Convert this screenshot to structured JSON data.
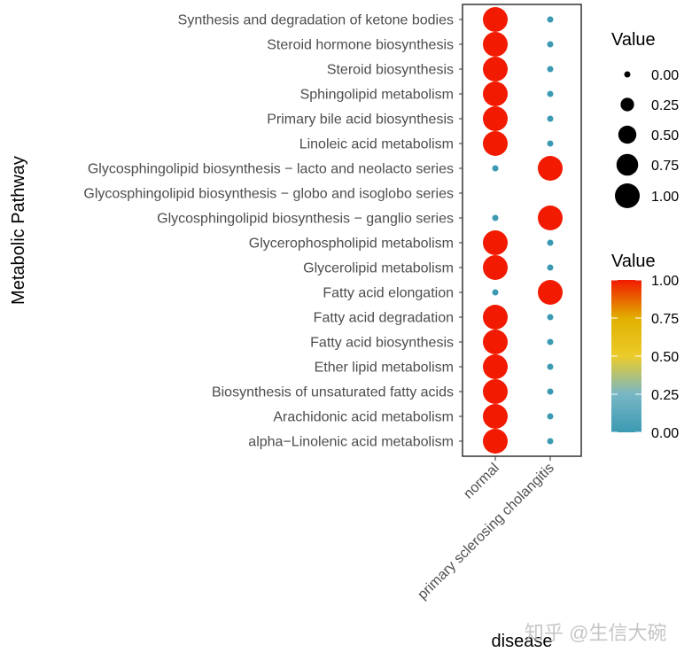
{
  "chart_data": {
    "type": "scatter",
    "subtype": "dot-plot",
    "xlabel": "disease",
    "ylabel": "Metabolic Pathway",
    "x_categories": [
      "normal",
      "primary sclerosing cholangitis"
    ],
    "y_categories": [
      "Synthesis and degradation of ketone bodies",
      "Steroid hormone biosynthesis",
      "Steroid biosynthesis",
      "Sphingolipid metabolism",
      "Primary bile acid biosynthesis",
      "Linoleic acid metabolism",
      "Glycosphingolipid biosynthesis − lacto and neolacto series",
      "Glycosphingolipid biosynthesis − globo and isoglobo series",
      "Glycosphingolipid biosynthesis − ganglio series",
      "Glycerophospholipid metabolism",
      "Glycerolipid metabolism",
      "Fatty acid elongation",
      "Fatty acid degradation",
      "Fatty acid biosynthesis",
      "Ether lipid metabolism",
      "Biosynthesis of unsaturated fatty acids",
      "Arachidonic acid metabolism",
      "alpha−Linolenic acid metabolism"
    ],
    "series": [
      {
        "x": "normal",
        "values": [
          1,
          1,
          1,
          1,
          1,
          1,
          0,
          null,
          0,
          1,
          1,
          0,
          1,
          1,
          1,
          1,
          1,
          1
        ]
      },
      {
        "x": "primary sclerosing cholangitis",
        "values": [
          0,
          0,
          0,
          0,
          0,
          0,
          1,
          null,
          1,
          0,
          0,
          1,
          0,
          0,
          0,
          0,
          0,
          0
        ]
      }
    ],
    "size_legend": {
      "title": "Value",
      "breaks": [
        "0.00",
        "0.25",
        "0.50",
        "0.75",
        "1.00"
      ]
    },
    "color_legend": {
      "title": "Value",
      "breaks": [
        "0.00",
        "0.25",
        "0.50",
        "0.75",
        "1.00"
      ],
      "range": [
        0,
        1
      ],
      "colors": [
        "#3B9AB2",
        "#78B7C5",
        "#EBCC2A",
        "#E1AF00",
        "#F21A00"
      ]
    },
    "grid": false,
    "legend_position": "right"
  },
  "watermark": "知乎 @生信大碗"
}
